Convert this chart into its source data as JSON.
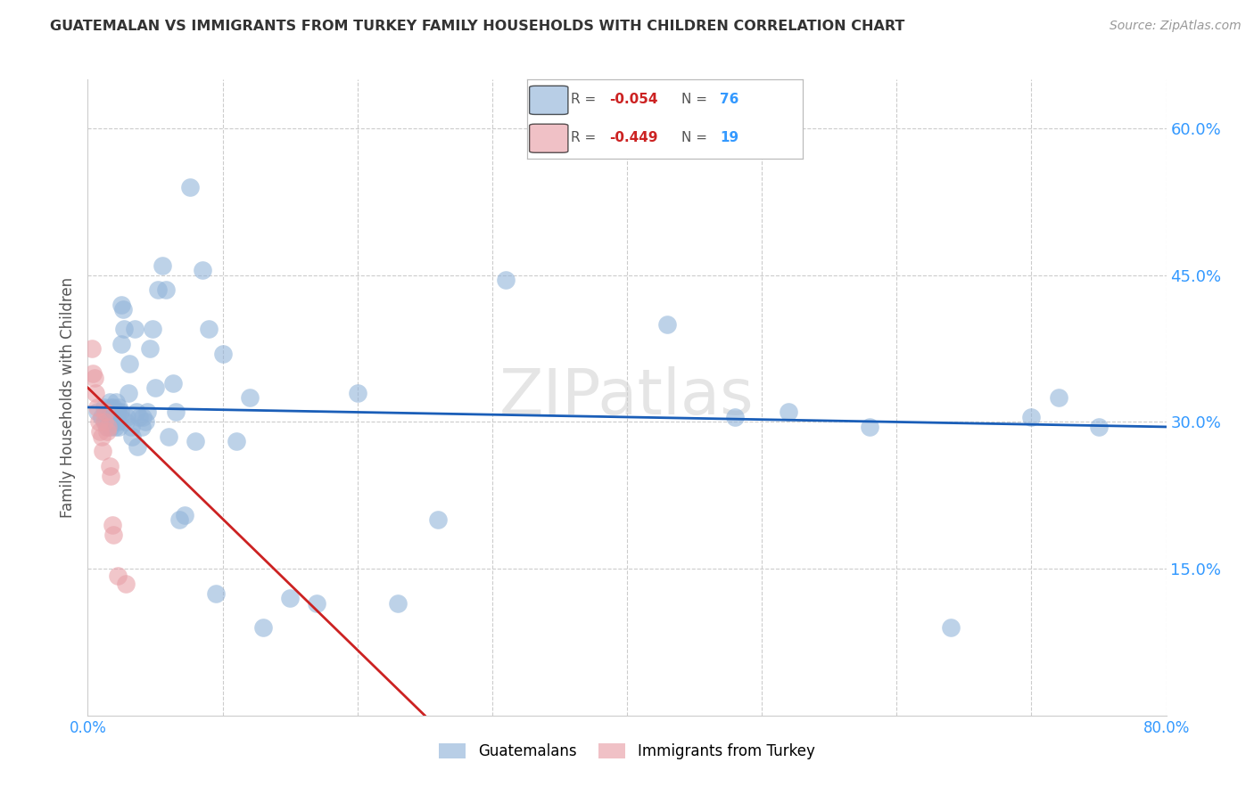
{
  "title": "GUATEMALAN VS IMMIGRANTS FROM TURKEY FAMILY HOUSEHOLDS WITH CHILDREN CORRELATION CHART",
  "source": "Source: ZipAtlas.com",
  "ylabel": "Family Households with Children",
  "xlim": [
    0.0,
    0.8
  ],
  "ylim": [
    0.0,
    0.65
  ],
  "xticks": [
    0.0,
    0.1,
    0.2,
    0.3,
    0.4,
    0.5,
    0.6,
    0.7,
    0.8
  ],
  "xticklabels": [
    "0.0%",
    "",
    "",
    "",
    "",
    "",
    "",
    "",
    "80.0%"
  ],
  "yticks_right": [
    0.15,
    0.3,
    0.45,
    0.6
  ],
  "ytick_labels_right": [
    "15.0%",
    "30.0%",
    "45.0%",
    "60.0%"
  ],
  "blue_color": "#92b4d9",
  "pink_color": "#e8a0a8",
  "blue_line_color": "#1a5eb8",
  "pink_line_color": "#cc2222",
  "blue_r": "-0.054",
  "blue_n": "76",
  "pink_r": "-0.449",
  "pink_n": "19",
  "blue_x": [
    0.007,
    0.01,
    0.012,
    0.013,
    0.014,
    0.015,
    0.016,
    0.016,
    0.017,
    0.017,
    0.018,
    0.018,
    0.019,
    0.019,
    0.02,
    0.02,
    0.021,
    0.021,
    0.022,
    0.022,
    0.023,
    0.023,
    0.024,
    0.024,
    0.025,
    0.025,
    0.026,
    0.027,
    0.028,
    0.029,
    0.03,
    0.031,
    0.032,
    0.033,
    0.035,
    0.036,
    0.037,
    0.038,
    0.04,
    0.041,
    0.043,
    0.044,
    0.046,
    0.048,
    0.05,
    0.052,
    0.055,
    0.058,
    0.06,
    0.063,
    0.065,
    0.068,
    0.072,
    0.076,
    0.08,
    0.085,
    0.09,
    0.095,
    0.1,
    0.11,
    0.12,
    0.13,
    0.15,
    0.17,
    0.2,
    0.23,
    0.26,
    0.31,
    0.43,
    0.48,
    0.52,
    0.58,
    0.64,
    0.7,
    0.72,
    0.75
  ],
  "blue_y": [
    0.31,
    0.305,
    0.315,
    0.3,
    0.295,
    0.31,
    0.305,
    0.32,
    0.295,
    0.315,
    0.31,
    0.305,
    0.3,
    0.315,
    0.31,
    0.295,
    0.305,
    0.32,
    0.31,
    0.3,
    0.315,
    0.295,
    0.31,
    0.305,
    0.38,
    0.42,
    0.415,
    0.395,
    0.3,
    0.305,
    0.33,
    0.36,
    0.295,
    0.285,
    0.395,
    0.31,
    0.275,
    0.305,
    0.295,
    0.305,
    0.3,
    0.31,
    0.375,
    0.395,
    0.335,
    0.435,
    0.46,
    0.435,
    0.285,
    0.34,
    0.31,
    0.2,
    0.205,
    0.54,
    0.28,
    0.455,
    0.395,
    0.125,
    0.37,
    0.28,
    0.325,
    0.09,
    0.12,
    0.115,
    0.33,
    0.115,
    0.2,
    0.445,
    0.4,
    0.305,
    0.31,
    0.295,
    0.09,
    0.305,
    0.325,
    0.295
  ],
  "pink_x": [
    0.003,
    0.004,
    0.005,
    0.006,
    0.007,
    0.008,
    0.009,
    0.01,
    0.011,
    0.012,
    0.013,
    0.014,
    0.015,
    0.016,
    0.017,
    0.018,
    0.019,
    0.022,
    0.028
  ],
  "pink_y": [
    0.375,
    0.35,
    0.345,
    0.33,
    0.315,
    0.3,
    0.29,
    0.285,
    0.27,
    0.3,
    0.31,
    0.29,
    0.295,
    0.255,
    0.245,
    0.195,
    0.185,
    0.143,
    0.135
  ],
  "blue_line_x0": 0.0,
  "blue_line_x1": 0.8,
  "blue_line_y0": 0.315,
  "blue_line_y1": 0.295,
  "pink_line_x0": 0.0,
  "pink_line_x1": 0.25,
  "pink_line_y0": 0.335,
  "pink_line_y1": 0.0,
  "watermark": "ZIPatlas"
}
